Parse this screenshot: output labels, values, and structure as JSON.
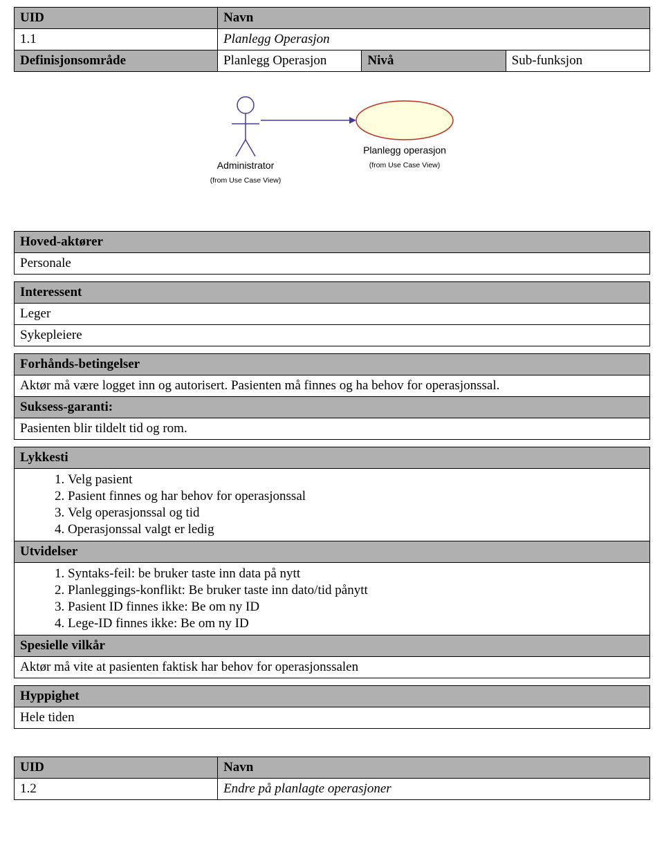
{
  "table1": {
    "hdr_uid": "UID",
    "hdr_navn": "Navn",
    "uid_val": "1.1",
    "navn_val": "Planlegg Operasjon",
    "row3_a": "Definisjonsområde",
    "row3_b": "Planlegg Operasjon",
    "row3_c": "Nivå",
    "row3_d": "Sub-funksjon"
  },
  "diagram": {
    "actor_label": "Administrator",
    "actor_sub": "(from Use Case View)",
    "usecase_label": "Planlegg operasjon",
    "usecase_sub": "(from Use Case View)",
    "ellipse_fill": "#fefedd",
    "ellipse_stroke": "#bf3018",
    "stick_stroke": "#463aa1",
    "arrow_stroke": "#463aa1"
  },
  "sec": {
    "hoved": "Hoved-aktører",
    "hoved_val": "Personale",
    "interessent": "Interessent",
    "interessent_v1": "Leger",
    "interessent_v2": "Sykepleiere",
    "forhand": "Forhånds-betingelser",
    "forhand_val": "Aktør må være logget inn og autorisert. Pasienten må finnes og ha behov for operasjonssal.",
    "suksess": "Suksess-garanti:",
    "suksess_val": "Pasienten blir tildelt tid og rom.",
    "lykkesti": "Lykkesti",
    "lykkesti_items": [
      "Velg pasient",
      "Pasient finnes og har behov for operasjonssal",
      "Velg operasjonssal og tid",
      "Operasjonssal valgt er ledig"
    ],
    "utvid": "Utvidelser",
    "utvid_items": [
      "Syntaks-feil: be bruker taste inn data på nytt",
      "Planleggings-konflikt: Be bruker taste inn dato/tid pånytt",
      "Pasient ID finnes ikke: Be om ny ID",
      "Lege-ID finnes ikke: Be om ny ID"
    ],
    "spesielle": "Spesielle vilkår",
    "spesielle_val": "Aktør må vite at pasienten faktisk har behov for operasjonssalen",
    "hypp": "Hyppighet",
    "hypp_val": "Hele tiden"
  },
  "table2": {
    "hdr_uid": "UID",
    "hdr_navn": "Navn",
    "uid_val": "1.2",
    "navn_val": "Endre på planlagte operasjoner"
  },
  "colors": {
    "header_bg": "#b0b0b0",
    "border": "#000000",
    "text": "#000000"
  }
}
